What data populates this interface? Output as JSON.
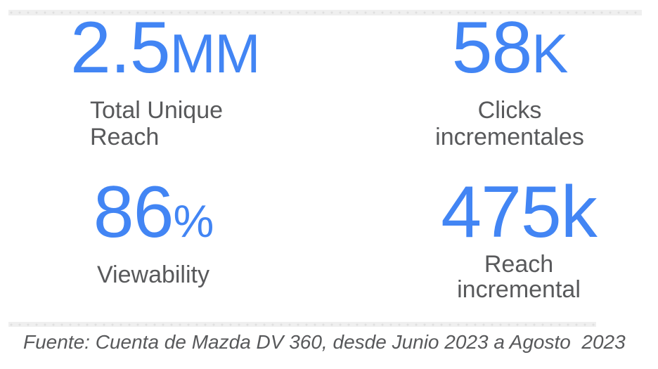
{
  "accent_color": "#4285F4",
  "text_color": "#58595B",
  "stats": [
    {
      "id": "total-unique-reach",
      "value": "2.5",
      "suffix": "MM",
      "label_lines": [
        "Total Unique",
        "Reach"
      ]
    },
    {
      "id": "clicks-incrementales",
      "value": "58",
      "suffix": "K",
      "label_lines": [
        "Clicks",
        "incrementales"
      ]
    },
    {
      "id": "viewability",
      "value": "86",
      "suffix": "%",
      "label_lines": [
        "Viewability"
      ]
    },
    {
      "id": "reach-incremental",
      "value": "475",
      "suffix": "k",
      "label_lines": [
        "Reach",
        "incremental"
      ]
    }
  ],
  "footer": {
    "source_text": "Fuente: Cuenta de Mazda DV 360, desde Junio 2023 a Agosto  2023"
  }
}
